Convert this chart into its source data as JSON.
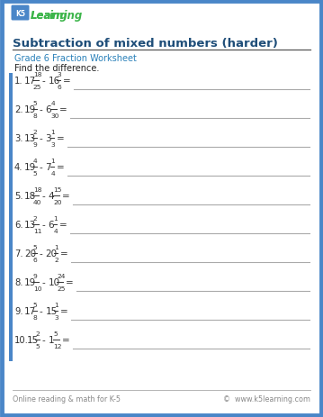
{
  "title": "Subtraction of mixed numbers (harder)",
  "subtitle": "Grade 6 Fraction Worksheet",
  "instruction": "Find the difference.",
  "footer_left": "Online reading & math for K-5",
  "footer_right": "©  www.k5learning.com",
  "problems": [
    {
      "num": "1.",
      "w1": "17",
      "n1": "18",
      "d1": "25",
      "w2": "16",
      "n2": "3",
      "d2": "6"
    },
    {
      "num": "2.",
      "w1": "19",
      "n1": "5",
      "d1": "8",
      "w2": "6",
      "n2": "4",
      "d2": "30"
    },
    {
      "num": "3.",
      "w1": "13",
      "n1": "2",
      "d1": "9",
      "w2": "3",
      "n2": "1",
      "d2": "3"
    },
    {
      "num": "4.",
      "w1": "19",
      "n1": "4",
      "d1": "5",
      "w2": "7",
      "n2": "1",
      "d2": "4"
    },
    {
      "num": "5.",
      "w1": "18",
      "n1": "18",
      "d1": "40",
      "w2": "4",
      "n2": "15",
      "d2": "20"
    },
    {
      "num": "6.",
      "w1": "13",
      "n1": "2",
      "d1": "11",
      "w2": "6",
      "n2": "1",
      "d2": "4"
    },
    {
      "num": "7.",
      "w1": "20",
      "n1": "5",
      "d1": "6",
      "w2": "20",
      "n2": "1",
      "d2": "2"
    },
    {
      "num": "8.",
      "w1": "19",
      "n1": "9",
      "d1": "10",
      "w2": "10",
      "n2": "24",
      "d2": "25"
    },
    {
      "num": "9.",
      "w1": "17",
      "n1": "5",
      "d1": "8",
      "w2": "15",
      "n2": "1",
      "d2": "3"
    },
    {
      "num": "10.",
      "w1": "15",
      "n1": "2",
      "d1": "5",
      "w2": "1",
      "n2": "5",
      "d2": "12"
    }
  ],
  "bg_color": "#ffffff",
  "border_color": "#4a86c8",
  "title_color": "#1f4e79",
  "subtitle_color": "#2980b9",
  "text_color": "#222222",
  "problem_color": "#333333",
  "line_color": "#aaaaaa",
  "footer_color": "#888888",
  "logo_green": "#3cb54a",
  "logo_blue": "#4a86c8"
}
